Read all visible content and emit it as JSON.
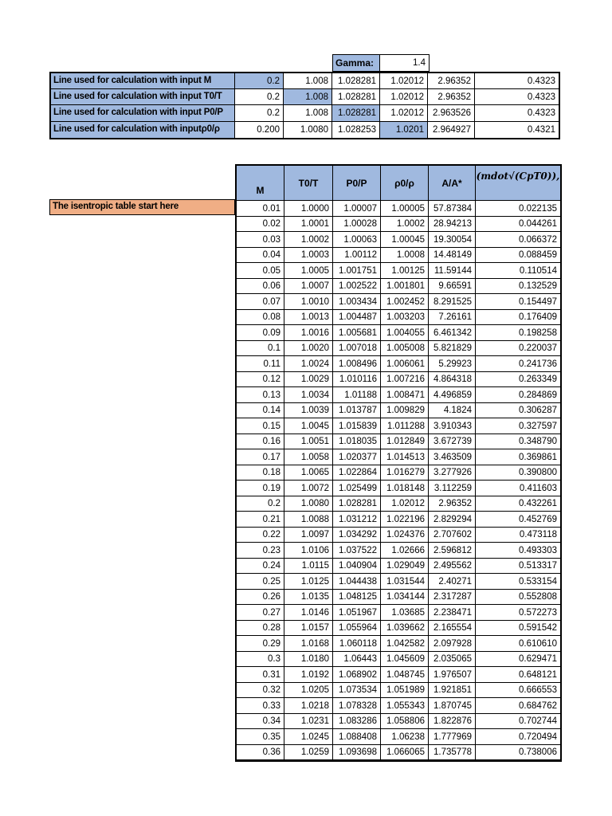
{
  "colors": {
    "header_blue": "#A0B9DF",
    "note_orange": "#F0AE85"
  },
  "gamma": {
    "label": "Gamma:",
    "value": "1.4"
  },
  "calc_lines": [
    {
      "label": "Line used for calculation with input M",
      "highlight": 0,
      "values": [
        "0.2",
        "1.008",
        "1.028281",
        "1.02012",
        "2.96352",
        "0.4323"
      ]
    },
    {
      "label": "Line used for calculation with input T0/T",
      "highlight": 1,
      "values": [
        "0.2",
        "1.008",
        "1.028281",
        "1.02012",
        "2.96352",
        "0.4323"
      ]
    },
    {
      "label": "Line used for calculation with input P0/P",
      "highlight": 2,
      "values": [
        "0.2",
        "1.008",
        "1.028281",
        "1.02012",
        "2.963526",
        "0.4323"
      ]
    },
    {
      "label": "Line used for calculation with inputρ0/ρ",
      "highlight": 3,
      "values": [
        "0.200",
        "1.0080",
        "1.028253",
        "1.0201",
        "2.964927",
        "0.4321"
      ]
    }
  ],
  "note": "The isentropic table start here",
  "isentropic_table": {
    "headers": [
      "M",
      "T0/T",
      "P0/P",
      "ρ0/ρ",
      "A/A*",
      "(mdot√(CpT0)),"
    ],
    "rows": [
      [
        "0.01",
        "1.0000",
        "1.00007",
        "1.00005",
        "57.87384",
        "0.022135"
      ],
      [
        "0.02",
        "1.0001",
        "1.00028",
        "1.0002",
        "28.94213",
        "0.044261"
      ],
      [
        "0.03",
        "1.0002",
        "1.00063",
        "1.00045",
        "19.30054",
        "0.066372"
      ],
      [
        "0.04",
        "1.0003",
        "1.00112",
        "1.0008",
        "14.48149",
        "0.088459"
      ],
      [
        "0.05",
        "1.0005",
        "1.001751",
        "1.00125",
        "11.59144",
        "0.110514"
      ],
      [
        "0.06",
        "1.0007",
        "1.002522",
        "1.001801",
        "9.66591",
        "0.132529"
      ],
      [
        "0.07",
        "1.0010",
        "1.003434",
        "1.002452",
        "8.291525",
        "0.154497"
      ],
      [
        "0.08",
        "1.0013",
        "1.004487",
        "1.003203",
        "7.26161",
        "0.176409"
      ],
      [
        "0.09",
        "1.0016",
        "1.005681",
        "1.004055",
        "6.461342",
        "0.198258"
      ],
      [
        "0.1",
        "1.0020",
        "1.007018",
        "1.005008",
        "5.821829",
        "0.220037"
      ],
      [
        "0.11",
        "1.0024",
        "1.008496",
        "1.006061",
        "5.29923",
        "0.241736"
      ],
      [
        "0.12",
        "1.0029",
        "1.010116",
        "1.007216",
        "4.864318",
        "0.263349"
      ],
      [
        "0.13",
        "1.0034",
        "1.01188",
        "1.008471",
        "4.496859",
        "0.284869"
      ],
      [
        "0.14",
        "1.0039",
        "1.013787",
        "1.009829",
        "4.1824",
        "0.306287"
      ],
      [
        "0.15",
        "1.0045",
        "1.015839",
        "1.011288",
        "3.910343",
        "0.327597"
      ],
      [
        "0.16",
        "1.0051",
        "1.018035",
        "1.012849",
        "3.672739",
        "0.348790"
      ],
      [
        "0.17",
        "1.0058",
        "1.020377",
        "1.014513",
        "3.463509",
        "0.369861"
      ],
      [
        "0.18",
        "1.0065",
        "1.022864",
        "1.016279",
        "3.277926",
        "0.390800"
      ],
      [
        "0.19",
        "1.0072",
        "1.025499",
        "1.018148",
        "3.112259",
        "0.411603"
      ],
      [
        "0.2",
        "1.0080",
        "1.028281",
        "1.02012",
        "2.96352",
        "0.432261"
      ],
      [
        "0.21",
        "1.0088",
        "1.031212",
        "1.022196",
        "2.829294",
        "0.452769"
      ],
      [
        "0.22",
        "1.0097",
        "1.034292",
        "1.024376",
        "2.707602",
        "0.473118"
      ],
      [
        "0.23",
        "1.0106",
        "1.037522",
        "1.02666",
        "2.596812",
        "0.493303"
      ],
      [
        "0.24",
        "1.0115",
        "1.040904",
        "1.029049",
        "2.495562",
        "0.513317"
      ],
      [
        "0.25",
        "1.0125",
        "1.044438",
        "1.031544",
        "2.40271",
        "0.533154"
      ],
      [
        "0.26",
        "1.0135",
        "1.048125",
        "1.034144",
        "2.317287",
        "0.552808"
      ],
      [
        "0.27",
        "1.0146",
        "1.051967",
        "1.03685",
        "2.238471",
        "0.572273"
      ],
      [
        "0.28",
        "1.0157",
        "1.055964",
        "1.039662",
        "2.165554",
        "0.591542"
      ],
      [
        "0.29",
        "1.0168",
        "1.060118",
        "1.042582",
        "2.097928",
        "0.610610"
      ],
      [
        "0.3",
        "1.0180",
        "1.06443",
        "1.045609",
        "2.035065",
        "0.629471"
      ],
      [
        "0.31",
        "1.0192",
        "1.068902",
        "1.048745",
        "1.976507",
        "0.648121"
      ],
      [
        "0.32",
        "1.0205",
        "1.073534",
        "1.051989",
        "1.921851",
        "0.666553"
      ],
      [
        "0.33",
        "1.0218",
        "1.078328",
        "1.055343",
        "1.870745",
        "0.684762"
      ],
      [
        "0.34",
        "1.0231",
        "1.083286",
        "1.058806",
        "1.822876",
        "0.702744"
      ],
      [
        "0.35",
        "1.0245",
        "1.088408",
        "1.06238",
        "1.777969",
        "0.720494"
      ],
      [
        "0.36",
        "1.0259",
        "1.093698",
        "1.066065",
        "1.735778",
        "0.738006"
      ]
    ]
  }
}
